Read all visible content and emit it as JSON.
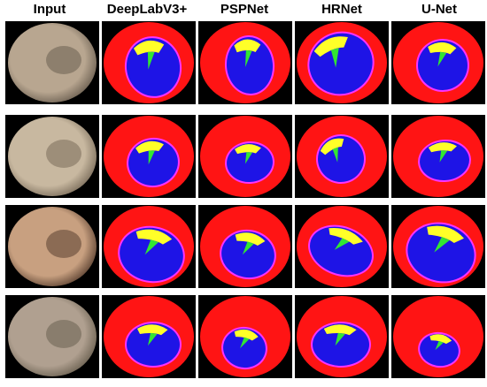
{
  "headers": {
    "input": "Input",
    "deeplab": "DeepLabV3+",
    "pspnet": "PSPNet",
    "hrnet": "HRNet",
    "unet": "U-Net"
  },
  "colors": {
    "background": "#000000",
    "outer_region": "#ff1414",
    "inner_region": "#1e14e6",
    "yellow_region": "#ffff28",
    "green_region": "#32e632",
    "rim": "#ff32ff"
  },
  "rows": [
    {
      "input_tone": "#b8a690",
      "input_dark": "#6a5e50"
    },
    {
      "input_tone": "#c8b8a0",
      "input_dark": "#7a6c5a"
    },
    {
      "input_tone": "#c8a080",
      "input_dark": "#5a4030"
    },
    {
      "input_tone": "#b0a090",
      "input_dark": "#6a6050"
    }
  ]
}
